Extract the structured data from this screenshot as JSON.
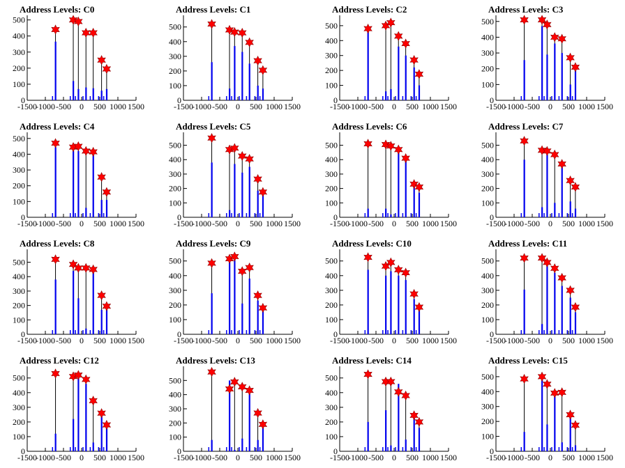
{
  "figure": {
    "x_ticks": [
      "-1500",
      "-1000",
      "-500",
      "0",
      "500",
      "1000",
      "1500"
    ],
    "y_ticks": [
      "0",
      "100",
      "200",
      "300",
      "400",
      "500"
    ],
    "star_color": "#ff0000",
    "bar_color": "#0000ee",
    "line_color": "#000000"
  },
  "chart_data": [
    {
      "type": "bar",
      "title": "Address Levels: C0",
      "xlim": [
        -1500,
        1500
      ],
      "ylim": [
        0,
        520
      ],
      "x": [
        -720,
        -230,
        -90,
        120,
        320,
        550,
        690
      ],
      "values": [
        440,
        500,
        490,
        420,
        420,
        250,
        195
      ],
      "blue_levels": [
        365,
        120,
        70,
        80,
        75,
        60,
        70
      ]
    },
    {
      "type": "bar",
      "title": "Address Levels: C1",
      "xlim": [
        -1500,
        1500
      ],
      "ylim": [
        0,
        570
      ],
      "x": [
        -720,
        -230,
        -90,
        120,
        320,
        550,
        690
      ],
      "values": [
        520,
        480,
        465,
        460,
        395,
        270,
        205
      ],
      "blue_levels": [
        260,
        80,
        370,
        330,
        250,
        100,
        80
      ]
    },
    {
      "type": "bar",
      "title": "Address Levels: C2",
      "xlim": [
        -1500,
        1500
      ],
      "ylim": [
        0,
        560
      ],
      "x": [
        -720,
        -230,
        -90,
        120,
        320,
        550,
        690
      ],
      "values": [
        480,
        500,
        520,
        430,
        380,
        270,
        175
      ],
      "blue_levels": [
        470,
        60,
        75,
        360,
        300,
        220,
        100
      ]
    },
    {
      "type": "bar",
      "title": "Address Levels: C3",
      "xlim": [
        -1500,
        1500
      ],
      "ylim": [
        0,
        530
      ],
      "x": [
        -720,
        -230,
        -90,
        120,
        320,
        550,
        690
      ],
      "values": [
        510,
        510,
        480,
        400,
        390,
        270,
        210
      ],
      "blue_levels": [
        255,
        470,
        290,
        360,
        300,
        100,
        190
      ]
    },
    {
      "type": "bar",
      "title": "Address Levels: C4",
      "xlim": [
        -1500,
        1500
      ],
      "ylim": [
        0,
        530
      ],
      "x": [
        -720,
        -230,
        -90,
        120,
        320,
        550,
        690
      ],
      "values": [
        470,
        445,
        450,
        420,
        415,
        255,
        160
      ],
      "blue_levels": [
        445,
        420,
        420,
        60,
        420,
        110,
        110
      ]
    },
    {
      "type": "bar",
      "title": "Address Levels: C5",
      "xlim": [
        -1500,
        1500
      ],
      "ylim": [
        0,
        580
      ],
      "x": [
        -720,
        -230,
        -90,
        120,
        320,
        550,
        690
      ],
      "values": [
        550,
        470,
        480,
        425,
        405,
        265,
        175
      ],
      "blue_levels": [
        380,
        50,
        370,
        310,
        350,
        185,
        170
      ]
    },
    {
      "type": "bar",
      "title": "Address Levels: C6",
      "xlim": [
        -1500,
        1500
      ],
      "ylim": [
        0,
        580
      ],
      "x": [
        -720,
        -230,
        -90,
        120,
        320,
        550,
        690
      ],
      "values": [
        510,
        505,
        495,
        470,
        410,
        230,
        210
      ],
      "blue_levels": [
        60,
        60,
        20,
        460,
        390,
        210,
        170
      ]
    },
    {
      "type": "bar",
      "title": "Address Levels: C7",
      "xlim": [
        -1500,
        1500
      ],
      "ylim": [
        0,
        580
      ],
      "x": [
        -720,
        -230,
        -90,
        120,
        320,
        550,
        690
      ],
      "values": [
        530,
        465,
        460,
        435,
        370,
        255,
        210
      ],
      "blue_levels": [
        400,
        70,
        440,
        100,
        350,
        110,
        60
      ]
    },
    {
      "type": "bar",
      "title": "Address Levels: C8",
      "xlim": [
        -1500,
        1500
      ],
      "ylim": [
        0,
        580
      ],
      "x": [
        -720,
        -230,
        -90,
        120,
        320,
        550,
        690
      ],
      "values": [
        520,
        485,
        460,
        460,
        450,
        270,
        195
      ],
      "blue_levels": [
        380,
        440,
        250,
        40,
        440,
        170,
        170
      ]
    },
    {
      "type": "bar",
      "title": "Address Levels: C9",
      "xlim": [
        -1500,
        1500
      ],
      "ylim": [
        0,
        570
      ],
      "x": [
        -720,
        -230,
        -90,
        120,
        320,
        550,
        690
      ],
      "values": [
        485,
        515,
        530,
        430,
        455,
        265,
        180
      ],
      "blue_levels": [
        280,
        510,
        510,
        210,
        380,
        230,
        160
      ]
    },
    {
      "type": "bar",
      "title": "Address Levels: C10",
      "xlim": [
        -1500,
        1500
      ],
      "ylim": [
        0,
        570
      ],
      "x": [
        -720,
        -230,
        -90,
        120,
        320,
        550,
        690
      ],
      "values": [
        525,
        465,
        490,
        440,
        420,
        275,
        185
      ],
      "blue_levels": [
        440,
        400,
        430,
        400,
        370,
        240,
        160
      ]
    },
    {
      "type": "bar",
      "title": "Address Levels: C11",
      "xlim": [
        -1500,
        1500
      ],
      "ylim": [
        0,
        570
      ],
      "x": [
        -720,
        -230,
        -90,
        120,
        320,
        550,
        690
      ],
      "values": [
        520,
        520,
        490,
        450,
        385,
        300,
        185
      ],
      "blue_levels": [
        305,
        70,
        470,
        420,
        330,
        250,
        150
      ]
    },
    {
      "type": "bar",
      "title": "Address Levels: C12",
      "xlim": [
        -1500,
        1500
      ],
      "ylim": [
        0,
        570
      ],
      "x": [
        -720,
        -230,
        -90,
        120,
        320,
        550,
        690
      ],
      "values": [
        530,
        510,
        520,
        490,
        345,
        260,
        180
      ],
      "blue_levels": [
        120,
        220,
        510,
        460,
        60,
        250,
        160
      ]
    },
    {
      "type": "bar",
      "title": "Address Levels: C13",
      "xlim": [
        -1500,
        1500
      ],
      "ylim": [
        0,
        590
      ],
      "x": [
        -720,
        -230,
        -90,
        120,
        320,
        550,
        690
      ],
      "values": [
        560,
        440,
        490,
        455,
        430,
        270,
        190
      ],
      "blue_levels": [
        80,
        500,
        10,
        90,
        410,
        80,
        170
      ]
    },
    {
      "type": "bar",
      "title": "Address Levels: C14",
      "xlim": [
        -1500,
        1500
      ],
      "ylim": [
        0,
        570
      ],
      "x": [
        -720,
        -230,
        -90,
        120,
        320,
        550,
        690
      ],
      "values": [
        525,
        475,
        475,
        405,
        380,
        245,
        200
      ],
      "blue_levels": [
        200,
        280,
        40,
        460,
        80,
        230,
        160
      ]
    },
    {
      "type": "bar",
      "title": "Address Levels: C15",
      "xlim": [
        -1500,
        1500
      ],
      "ylim": [
        0,
        560
      ],
      "x": [
        -720,
        -230,
        -90,
        120,
        320,
        550,
        690
      ],
      "values": [
        485,
        500,
        450,
        390,
        395,
        245,
        175
      ],
      "blue_levels": [
        130,
        480,
        180,
        370,
        60,
        230,
        40
      ]
    }
  ]
}
